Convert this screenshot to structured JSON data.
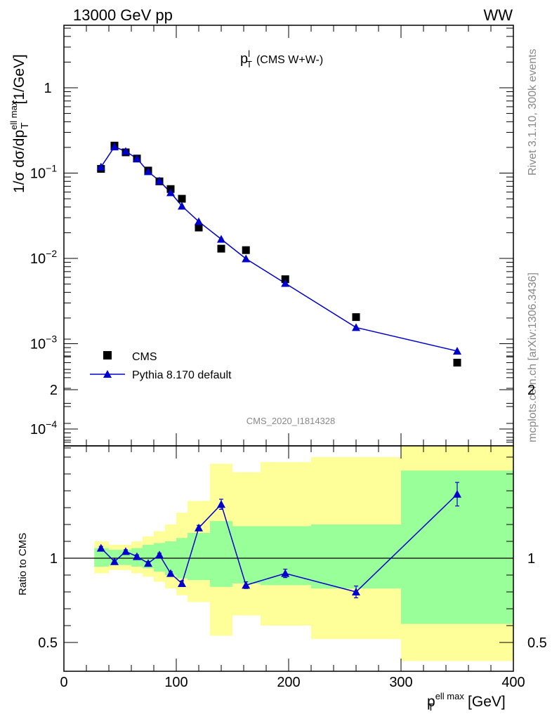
{
  "header": {
    "left": "13000 GeV pp",
    "right": "WW"
  },
  "side_text": {
    "rivet": "Rivet 3.1.10,  300k events",
    "mcplots": "mcplots.cern.ch [arXiv:1306.3436]"
  },
  "analysis_id": "CMS_2020_I1814328",
  "colors": {
    "mc": "#0000cc",
    "data": "#000000",
    "band_inner": "#99ff99",
    "band_outer": "#ffff99"
  },
  "chart_data": [
    {
      "type": "scatter",
      "title_main": "p",
      "title_sup": "l",
      "title_sub": "T",
      "title_rest": "(CMS W+W-)",
      "ylabel_main": "1/σ dσ/dp",
      "ylabel_sup": "ell max",
      "ylabel_sub": "T",
      "ylabel_unit": "[1/GeV]",
      "yscale": "log",
      "ylim": [
        6e-05,
        5.5
      ],
      "xlim": [
        0,
        400
      ],
      "ytick_labels": [
        "10^-4",
        "10^-3",
        "10^-2",
        "10^-1",
        "1"
      ],
      "legend": {
        "placement": "bottom-left",
        "data_label": "CMS",
        "mc_label": "Pythia 8.170 default"
      },
      "series": [
        {
          "name": "CMS",
          "x": [
            33,
            45,
            55,
            65,
            75,
            85,
            95,
            105,
            120,
            140,
            162,
            197,
            260,
            350
          ],
          "y": [
            0.112,
            0.21,
            0.175,
            0.148,
            0.107,
            0.08,
            0.065,
            0.05,
            0.023,
            0.013,
            0.0125,
            0.0057,
            0.00205,
            0.0006
          ]
        },
        {
          "name": "Pythia 8.170 default",
          "x": [
            33,
            45,
            55,
            65,
            75,
            85,
            95,
            105,
            120,
            140,
            162,
            197,
            260,
            350
          ],
          "y": [
            0.118,
            0.203,
            0.18,
            0.148,
            0.104,
            0.081,
            0.059,
            0.041,
            0.027,
            0.0168,
            0.0099,
            0.0051,
            0.00155,
            0.00082
          ]
        }
      ]
    },
    {
      "type": "scatter",
      "ylabel": "Ratio to CMS",
      "xlabel_main": "p",
      "xlabel_sup": "ell max",
      "xlabel_sub": "T",
      "xlabel_unit": "[GeV]",
      "xlim": [
        0,
        400
      ],
      "ylim": [
        0.4,
        2.4
      ],
      "x_ticks": [
        0,
        100,
        200,
        300,
        400
      ],
      "y_ticks": [
        0.5,
        1,
        2
      ],
      "bands": {
        "edges": [
          27,
          40,
          50,
          60,
          70,
          80,
          90,
          100,
          110,
          130,
          150,
          175,
          220,
          300,
          400
        ],
        "inner_lo": [
          0.95,
          0.96,
          0.96,
          0.95,
          0.94,
          0.92,
          0.9,
          0.88,
          0.87,
          0.83,
          0.85,
          0.84,
          0.82,
          0.61
        ],
        "inner_hi": [
          1.06,
          1.05,
          1.05,
          1.06,
          1.08,
          1.09,
          1.1,
          1.12,
          1.15,
          1.22,
          1.19,
          1.19,
          1.2,
          1.52
        ],
        "outer_lo": [
          0.91,
          0.93,
          0.93,
          0.91,
          0.89,
          0.86,
          0.82,
          0.78,
          0.74,
          0.54,
          0.66,
          0.6,
          0.52,
          0.39
        ],
        "outer_hi": [
          1.1,
          1.08,
          1.08,
          1.1,
          1.13,
          1.16,
          1.2,
          1.27,
          1.34,
          1.56,
          1.51,
          1.57,
          1.6,
          2.23
        ]
      },
      "series": [
        {
          "name": "Pythia 8.170 default",
          "x": [
            33,
            45,
            55,
            65,
            75,
            85,
            95,
            105,
            120,
            140,
            162,
            197,
            260,
            350
          ],
          "y": [
            1.06,
            0.98,
            1.04,
            1.01,
            0.97,
            1.02,
            0.91,
            0.85,
            1.18,
            1.32,
            0.84,
            0.91,
            0.8,
            1.38
          ],
          "err": [
            0.01,
            0.01,
            0.01,
            0.01,
            0.01,
            0.01,
            0.01,
            0.015,
            0.015,
            0.03,
            0.02,
            0.025,
            0.035,
            0.07
          ]
        }
      ]
    }
  ]
}
